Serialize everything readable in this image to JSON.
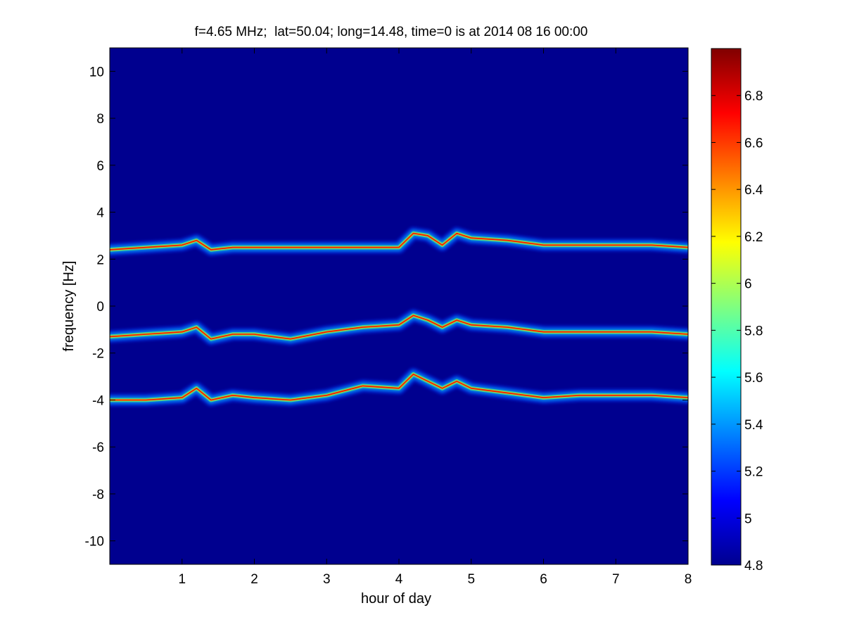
{
  "chart_data": {
    "type": "heatmap",
    "title": "f=4.65 MHz;  lat=50.04; long=14.48, time=0 is at 2014 08 16 00:00",
    "xlabel": "hour of day",
    "ylabel": "frequency [Hz]",
    "xlim": [
      0,
      8
    ],
    "ylim": [
      -11,
      11
    ],
    "x_ticks": [
      "1",
      "2",
      "3",
      "4",
      "5",
      "6",
      "7",
      "8"
    ],
    "y_ticks": [
      "-10",
      "-8",
      "-6",
      "-4",
      "-2",
      "0",
      "2",
      "4",
      "6",
      "8",
      "10"
    ],
    "colorbar": {
      "range": [
        4.8,
        7.0
      ],
      "ticks": [
        "4.8",
        "5",
        "5.2",
        "5.4",
        "5.6",
        "5.8",
        "6",
        "6.2",
        "6.4",
        "6.6",
        "6.8"
      ],
      "colormap": "jet"
    },
    "background_color": "#00008f",
    "series": [
      {
        "x": [
          0,
          0.5,
          1.0,
          1.2,
          1.4,
          1.7,
          2.0,
          2.5,
          3.0,
          3.5,
          4.0,
          4.2,
          4.4,
          4.6,
          4.8,
          5.0,
          5.5,
          6.0,
          6.5,
          7.0,
          7.5,
          8.0
        ],
        "y": [
          2.4,
          2.5,
          2.6,
          2.8,
          2.4,
          2.5,
          2.5,
          2.5,
          2.5,
          2.5,
          2.5,
          3.1,
          3.0,
          2.6,
          3.1,
          2.9,
          2.8,
          2.6,
          2.6,
          2.6,
          2.6,
          2.5
        ]
      },
      {
        "x": [
          0,
          0.5,
          1.0,
          1.2,
          1.4,
          1.7,
          2.0,
          2.5,
          3.0,
          3.5,
          4.0,
          4.2,
          4.4,
          4.6,
          4.8,
          5.0,
          5.5,
          6.0,
          6.5,
          7.0,
          7.5,
          8.0
        ],
        "y": [
          -1.3,
          -1.2,
          -1.1,
          -0.9,
          -1.4,
          -1.2,
          -1.2,
          -1.4,
          -1.1,
          -0.9,
          -0.8,
          -0.4,
          -0.6,
          -0.9,
          -0.6,
          -0.8,
          -0.9,
          -1.1,
          -1.1,
          -1.1,
          -1.1,
          -1.2
        ]
      },
      {
        "x": [
          0,
          0.5,
          1.0,
          1.2,
          1.4,
          1.7,
          2.0,
          2.5,
          3.0,
          3.5,
          4.0,
          4.2,
          4.4,
          4.6,
          4.8,
          5.0,
          5.5,
          6.0,
          6.5,
          7.0,
          7.5,
          8.0
        ],
        "y": [
          -4.0,
          -4.0,
          -3.9,
          -3.5,
          -4.0,
          -3.8,
          -3.9,
          -4.0,
          -3.8,
          -3.4,
          -3.5,
          -2.9,
          -3.2,
          -3.5,
          -3.2,
          -3.5,
          -3.7,
          -3.9,
          -3.8,
          -3.8,
          -3.8,
          -3.9
        ]
      }
    ],
    "colors": {
      "low": "#00008f",
      "mid": "#00ffff",
      "high": "#800000"
    }
  }
}
